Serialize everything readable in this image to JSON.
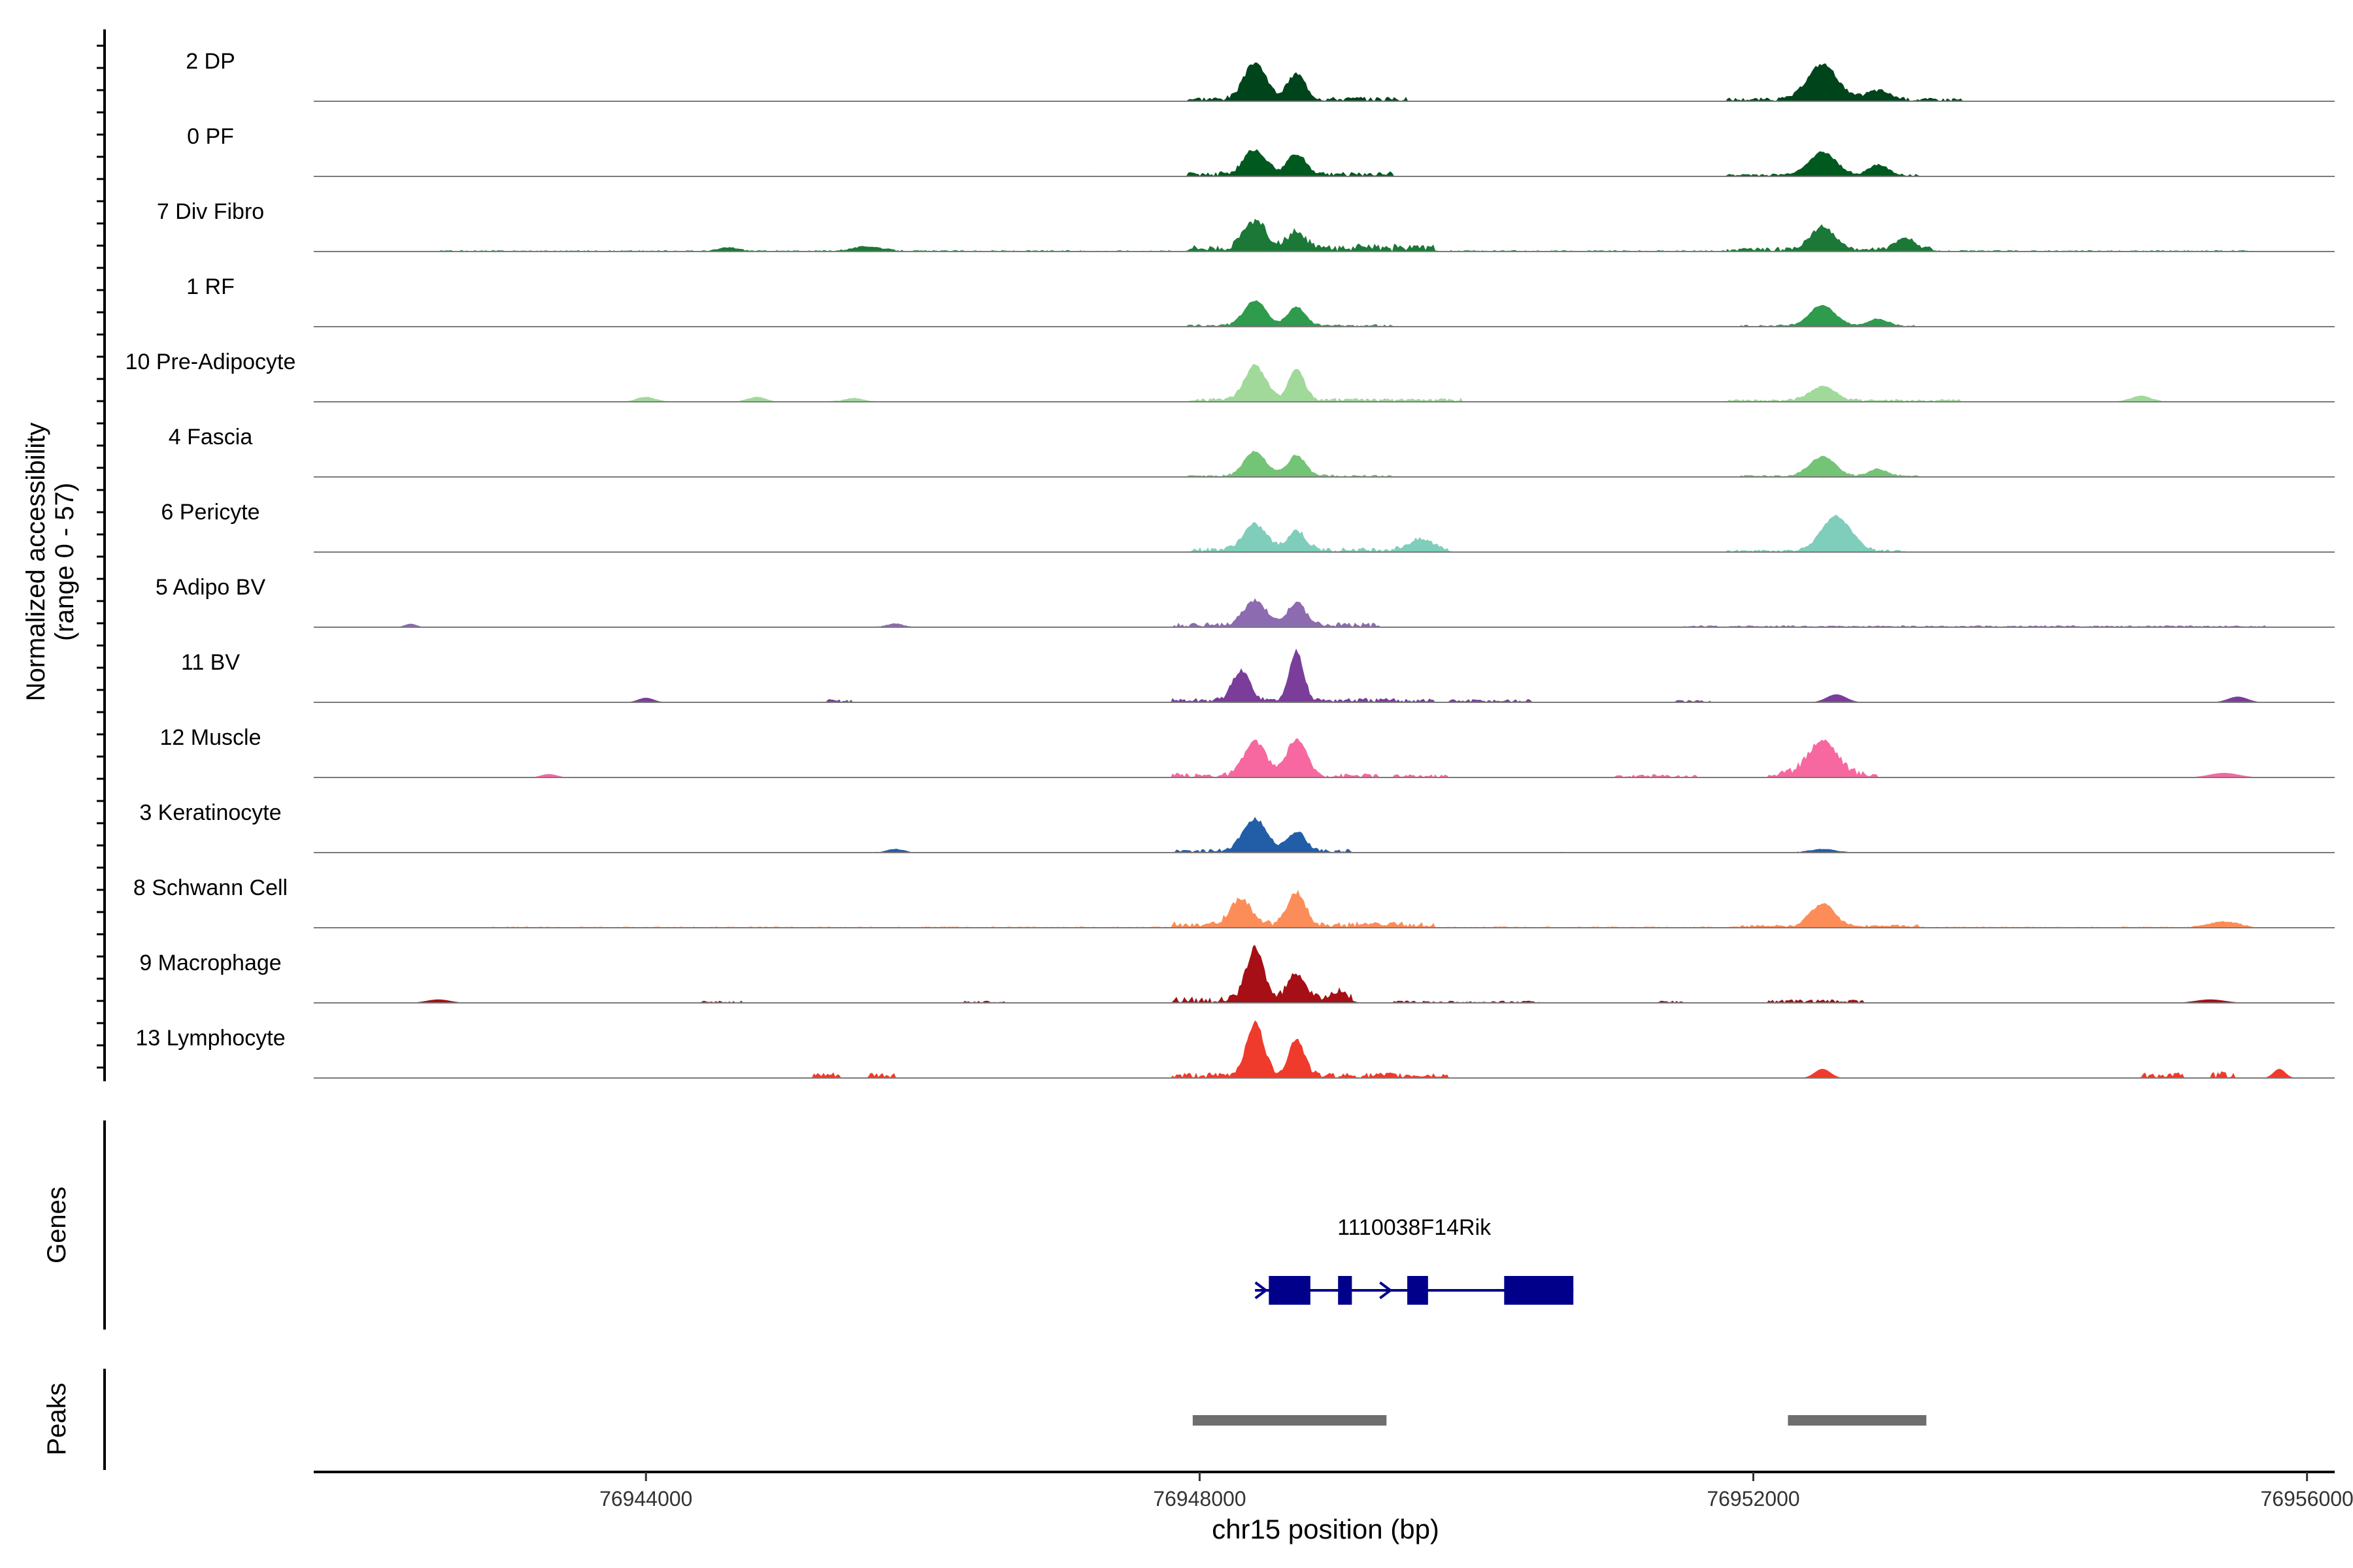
{
  "chart_data": {
    "type": "area",
    "ylabel_line1": "Normalized accessibility",
    "ylabel_line2": "(range 0 - 57)",
    "yrange": [
      0,
      57
    ],
    "xlabel": "chr15 position (bp)",
    "xlim": [
      76941600,
      76956200
    ],
    "xticks": [
      76944000,
      76948000,
      76952000,
      76956000
    ],
    "xtick_labels": [
      "76944000",
      "76948000",
      "76952000",
      "76956000"
    ],
    "tracks": [
      {
        "name": "2 DP",
        "color": "#00441b",
        "peaks": [
          [
            76948400,
            32,
            110
          ],
          [
            76948700,
            22,
            90
          ],
          [
            76952500,
            31,
            150
          ],
          [
            76952900,
            8,
            120
          ]
        ],
        "bg": [
          [
            76947900,
            76949500,
            4
          ],
          [
            76951800,
            76953500,
            3
          ],
          [
            76942500,
            76955800,
            0.5
          ]
        ]
      },
      {
        "name": "0 PF",
        "color": "#00591f",
        "peaks": [
          [
            76948400,
            22,
            110
          ],
          [
            76948700,
            18,
            90
          ],
          [
            76952500,
            20,
            140
          ],
          [
            76952900,
            9,
            100
          ]
        ],
        "bg": [
          [
            76947900,
            76949400,
            4
          ],
          [
            76951800,
            76953200,
            2
          ],
          [
            76942500,
            76955600,
            0.6
          ]
        ]
      },
      {
        "name": "7 Div Fibro",
        "color": "#1b7837",
        "peaks": [
          [
            76948400,
            24,
            110
          ],
          [
            76948700,
            14,
            90
          ],
          [
            76952500,
            20,
            120
          ],
          [
            76953100,
            10,
            100
          ],
          [
            76944600,
            3,
            100
          ],
          [
            76945600,
            4,
            150
          ]
        ],
        "bg": [
          [
            76947900,
            76949700,
            6
          ],
          [
            76951800,
            76953300,
            3
          ],
          [
            76942500,
            76955700,
            1.2
          ]
        ]
      },
      {
        "name": "1 RF",
        "color": "#2e9b4d",
        "peaks": [
          [
            76948400,
            22,
            110
          ],
          [
            76948700,
            16,
            90
          ],
          [
            76952500,
            18,
            130
          ],
          [
            76952900,
            6,
            100
          ]
        ],
        "bg": [
          [
            76947900,
            76949400,
            2
          ],
          [
            76951900,
            76953200,
            1.5
          ],
          [
            76942500,
            76955500,
            0.4
          ]
        ]
      },
      {
        "name": "10 Pre-Adipocyte",
        "color": "#a1d99b",
        "peaks": [
          [
            76948400,
            30,
            110
          ],
          [
            76948700,
            28,
            80
          ],
          [
            76952500,
            12,
            130
          ],
          [
            76954800,
            5,
            100
          ],
          [
            76944000,
            4,
            90
          ],
          [
            76944800,
            4,
            90
          ],
          [
            76945500,
            3,
            90
          ]
        ],
        "bg": [
          [
            76947900,
            76949900,
            3
          ],
          [
            76951800,
            76953500,
            2
          ],
          [
            76942500,
            76955600,
            0.6
          ]
        ]
      },
      {
        "name": "4 Fascia",
        "color": "#74c476",
        "peaks": [
          [
            76948400,
            21,
            110
          ],
          [
            76948700,
            18,
            90
          ],
          [
            76952500,
            17,
            130
          ],
          [
            76952900,
            6,
            100
          ]
        ],
        "bg": [
          [
            76947900,
            76949400,
            2
          ],
          [
            76951900,
            76953200,
            1.5
          ],
          [
            76942500,
            76955500,
            0.4
          ]
        ]
      },
      {
        "name": "6 Pericyte",
        "color": "#7fcdbb",
        "peaks": [
          [
            76948400,
            22,
            120
          ],
          [
            76948700,
            17,
            90
          ],
          [
            76952600,
            30,
            150
          ],
          [
            76949600,
            9,
            130
          ]
        ],
        "bg": [
          [
            76947900,
            76949800,
            4
          ],
          [
            76951800,
            76953100,
            2
          ],
          [
            76942500,
            76955500,
            0.6
          ]
        ]
      },
      {
        "name": "5 Adipo BV",
        "color": "#8c6bb1",
        "peaks": [
          [
            76948400,
            22,
            110
          ],
          [
            76948700,
            20,
            90
          ],
          [
            76942300,
            3,
            60
          ],
          [
            76945800,
            3,
            80
          ]
        ],
        "bg": [
          [
            76947800,
            76949300,
            4
          ],
          [
            76951500,
            76955700,
            1.2
          ],
          [
            76942500,
            76955700,
            0.6
          ]
        ]
      },
      {
        "name": "11 BV",
        "color": "#7a3d9a",
        "peaks": [
          [
            76948300,
            26,
            90
          ],
          [
            76948700,
            44,
            70
          ],
          [
            76944000,
            4,
            80
          ],
          [
            76952600,
            7,
            100
          ],
          [
            76955500,
            5,
            100
          ]
        ],
        "bg": [
          [
            76947800,
            76949700,
            4
          ],
          [
            76945300,
            76945500,
            3
          ],
          [
            76951400,
            76951700,
            2
          ],
          [
            76949800,
            76950400,
            3
          ]
        ]
      },
      {
        "name": "12 Muscle",
        "color": "#f768a1",
        "peaks": [
          [
            76948400,
            30,
            110
          ],
          [
            76948700,
            32,
            100
          ],
          [
            76952500,
            30,
            150
          ],
          [
            76943300,
            3,
            80
          ],
          [
            76955400,
            4,
            150
          ]
        ],
        "bg": [
          [
            76947800,
            76949300,
            4
          ],
          [
            76949400,
            76949800,
            3
          ],
          [
            76951000,
            76951600,
            3
          ],
          [
            76952100,
            76952900,
            6
          ]
        ]
      },
      {
        "name": "3 Keratinocyte",
        "color": "#225ea8",
        "peaks": [
          [
            76948400,
            28,
            120
          ],
          [
            76948700,
            17,
            90
          ],
          [
            76945800,
            3,
            80
          ],
          [
            76952500,
            3,
            120
          ]
        ],
        "bg": [
          [
            76947800,
            76949100,
            3
          ],
          [
            76942500,
            76955800,
            0.6
          ]
        ]
      },
      {
        "name": "8 Schwann Cell",
        "color": "#fc8d59",
        "peaks": [
          [
            76948300,
            22,
            110
          ],
          [
            76948700,
            28,
            90
          ],
          [
            76952500,
            20,
            120
          ],
          [
            76955400,
            5,
            150
          ]
        ],
        "bg": [
          [
            76947800,
            76949700,
            5
          ],
          [
            76951900,
            76953200,
            2
          ],
          [
            76942800,
            76955600,
            1
          ]
        ]
      },
      {
        "name": "9 Macrophage",
        "color": "#a50f15",
        "peaks": [
          [
            76948400,
            45,
            90
          ],
          [
            76948700,
            24,
            90
          ],
          [
            76949000,
            8,
            90
          ],
          [
            76942500,
            3,
            120
          ],
          [
            76955300,
            3,
            150
          ]
        ],
        "bg": [
          [
            76947800,
            76949100,
            6
          ],
          [
            76944400,
            76944700,
            2
          ],
          [
            76946300,
            76946600,
            2
          ],
          [
            76949400,
            76950500,
            2
          ],
          [
            76951300,
            76951500,
            2
          ],
          [
            76952100,
            76952800,
            3
          ]
        ]
      },
      {
        "name": "13 Lymphocyte",
        "color": "#ef3b2c",
        "peaks": [
          [
            76948400,
            46,
            90
          ],
          [
            76948700,
            32,
            80
          ],
          [
            76952500,
            8,
            80
          ],
          [
            76955800,
            8,
            60
          ]
        ],
        "bg": [
          [
            76947800,
            76949100,
            5
          ],
          [
            76945200,
            76945400,
            5
          ],
          [
            76945600,
            76945800,
            5
          ],
          [
            76949100,
            76949800,
            5
          ],
          [
            76954800,
            76955100,
            5
          ],
          [
            76955300,
            76955500,
            6
          ]
        ]
      }
    ],
    "genes_label": "Genes",
    "gene": {
      "name": "1110038F14Rik",
      "start": 76948400,
      "end": 76950700,
      "exons": [
        [
          76948500,
          76948800
        ],
        [
          76949000,
          76949100
        ],
        [
          76949500,
          76949650
        ],
        [
          76950200,
          76950700
        ]
      ],
      "strand_arrows": [
        76948450,
        76949350
      ],
      "color": "#00008b"
    },
    "peaks_label": "Peaks",
    "peak_regions": [
      [
        76947950,
        76949350
      ],
      [
        76952250,
        76953250
      ]
    ],
    "peak_color": "#6e6e6e"
  }
}
